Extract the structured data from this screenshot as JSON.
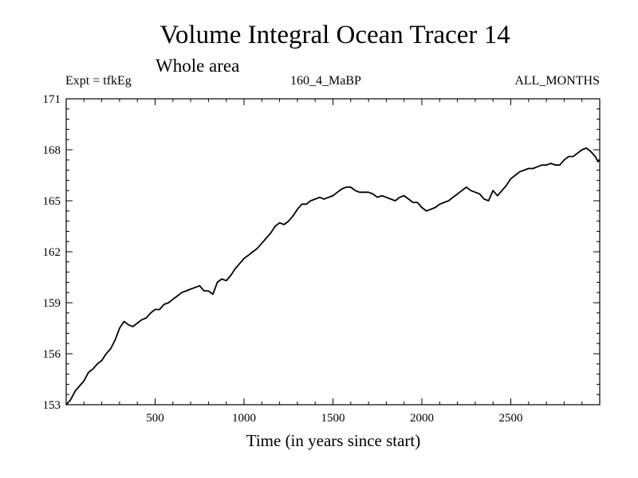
{
  "header": {
    "title": "Volume Integral Ocean Tracer 14",
    "subtitle": "Whole area",
    "expt": "Expt = tfkEg",
    "run": "160_4_MaBP",
    "months": "ALL_MONTHS"
  },
  "chart_data": {
    "type": "line",
    "title": "Volume Integral Ocean Tracer 14",
    "subtitle": "Whole area",
    "xlabel": "Time (in years since start)",
    "ylabel": "",
    "xlim": [
      0,
      3000
    ],
    "ylim": [
      153,
      171
    ],
    "xticks": [
      500,
      1000,
      1500,
      2000,
      2500
    ],
    "yticks": [
      153,
      156,
      159,
      162,
      165,
      168,
      171
    ],
    "grid": false,
    "series": [
      {
        "color": "#000000",
        "points": [
          [
            0,
            153.0
          ],
          [
            25,
            153.3
          ],
          [
            50,
            153.8
          ],
          [
            75,
            154.1
          ],
          [
            100,
            154.4
          ],
          [
            125,
            154.9
          ],
          [
            150,
            155.1
          ],
          [
            175,
            155.4
          ],
          [
            200,
            155.6
          ],
          [
            225,
            156.0
          ],
          [
            250,
            156.3
          ],
          [
            275,
            156.8
          ],
          [
            300,
            157.5
          ],
          [
            325,
            157.9
          ],
          [
            350,
            157.7
          ],
          [
            375,
            157.6
          ],
          [
            400,
            157.8
          ],
          [
            425,
            158.0
          ],
          [
            450,
            158.1
          ],
          [
            475,
            158.4
          ],
          [
            500,
            158.6
          ],
          [
            525,
            158.6
          ],
          [
            550,
            158.9
          ],
          [
            575,
            159.0
          ],
          [
            600,
            159.2
          ],
          [
            625,
            159.4
          ],
          [
            650,
            159.6
          ],
          [
            675,
            159.7
          ],
          [
            700,
            159.8
          ],
          [
            725,
            159.9
          ],
          [
            750,
            160.0
          ],
          [
            775,
            159.7
          ],
          [
            800,
            159.7
          ],
          [
            825,
            159.5
          ],
          [
            850,
            160.2
          ],
          [
            875,
            160.4
          ],
          [
            900,
            160.3
          ],
          [
            925,
            160.6
          ],
          [
            950,
            161.0
          ],
          [
            975,
            161.3
          ],
          [
            1000,
            161.6
          ],
          [
            1025,
            161.8
          ],
          [
            1050,
            162.0
          ],
          [
            1075,
            162.2
          ],
          [
            1100,
            162.5
          ],
          [
            1125,
            162.8
          ],
          [
            1150,
            163.1
          ],
          [
            1175,
            163.5
          ],
          [
            1200,
            163.7
          ],
          [
            1225,
            163.6
          ],
          [
            1250,
            163.8
          ],
          [
            1275,
            164.1
          ],
          [
            1300,
            164.5
          ],
          [
            1325,
            164.8
          ],
          [
            1350,
            164.8
          ],
          [
            1375,
            165.0
          ],
          [
            1400,
            165.1
          ],
          [
            1425,
            165.2
          ],
          [
            1450,
            165.1
          ],
          [
            1475,
            165.2
          ],
          [
            1500,
            165.3
          ],
          [
            1525,
            165.5
          ],
          [
            1550,
            165.7
          ],
          [
            1575,
            165.8
          ],
          [
            1600,
            165.8
          ],
          [
            1625,
            165.6
          ],
          [
            1650,
            165.5
          ],
          [
            1675,
            165.5
          ],
          [
            1700,
            165.5
          ],
          [
            1725,
            165.4
          ],
          [
            1750,
            165.2
          ],
          [
            1775,
            165.3
          ],
          [
            1800,
            165.2
          ],
          [
            1825,
            165.1
          ],
          [
            1850,
            165.0
          ],
          [
            1875,
            165.2
          ],
          [
            1900,
            165.3
          ],
          [
            1925,
            165.1
          ],
          [
            1950,
            164.9
          ],
          [
            1975,
            164.9
          ],
          [
            2000,
            164.6
          ],
          [
            2025,
            164.4
          ],
          [
            2050,
            164.5
          ],
          [
            2075,
            164.6
          ],
          [
            2100,
            164.8
          ],
          [
            2125,
            164.9
          ],
          [
            2150,
            165.0
          ],
          [
            2175,
            165.2
          ],
          [
            2200,
            165.4
          ],
          [
            2225,
            165.6
          ],
          [
            2250,
            165.8
          ],
          [
            2275,
            165.6
          ],
          [
            2300,
            165.5
          ],
          [
            2325,
            165.4
          ],
          [
            2350,
            165.1
          ],
          [
            2375,
            165.0
          ],
          [
            2400,
            165.6
          ],
          [
            2425,
            165.3
          ],
          [
            2450,
            165.6
          ],
          [
            2475,
            165.9
          ],
          [
            2500,
            166.3
          ],
          [
            2525,
            166.5
          ],
          [
            2550,
            166.7
          ],
          [
            2575,
            166.8
          ],
          [
            2600,
            166.9
          ],
          [
            2625,
            166.9
          ],
          [
            2650,
            167.0
          ],
          [
            2675,
            167.1
          ],
          [
            2700,
            167.1
          ],
          [
            2725,
            167.2
          ],
          [
            2750,
            167.1
          ],
          [
            2775,
            167.1
          ],
          [
            2800,
            167.4
          ],
          [
            2825,
            167.6
          ],
          [
            2850,
            167.6
          ],
          [
            2875,
            167.8
          ],
          [
            2900,
            168.0
          ],
          [
            2925,
            168.1
          ],
          [
            2950,
            167.9
          ],
          [
            2975,
            167.6
          ],
          [
            2990,
            167.3
          ],
          [
            3000,
            167.4
          ]
        ]
      }
    ]
  }
}
